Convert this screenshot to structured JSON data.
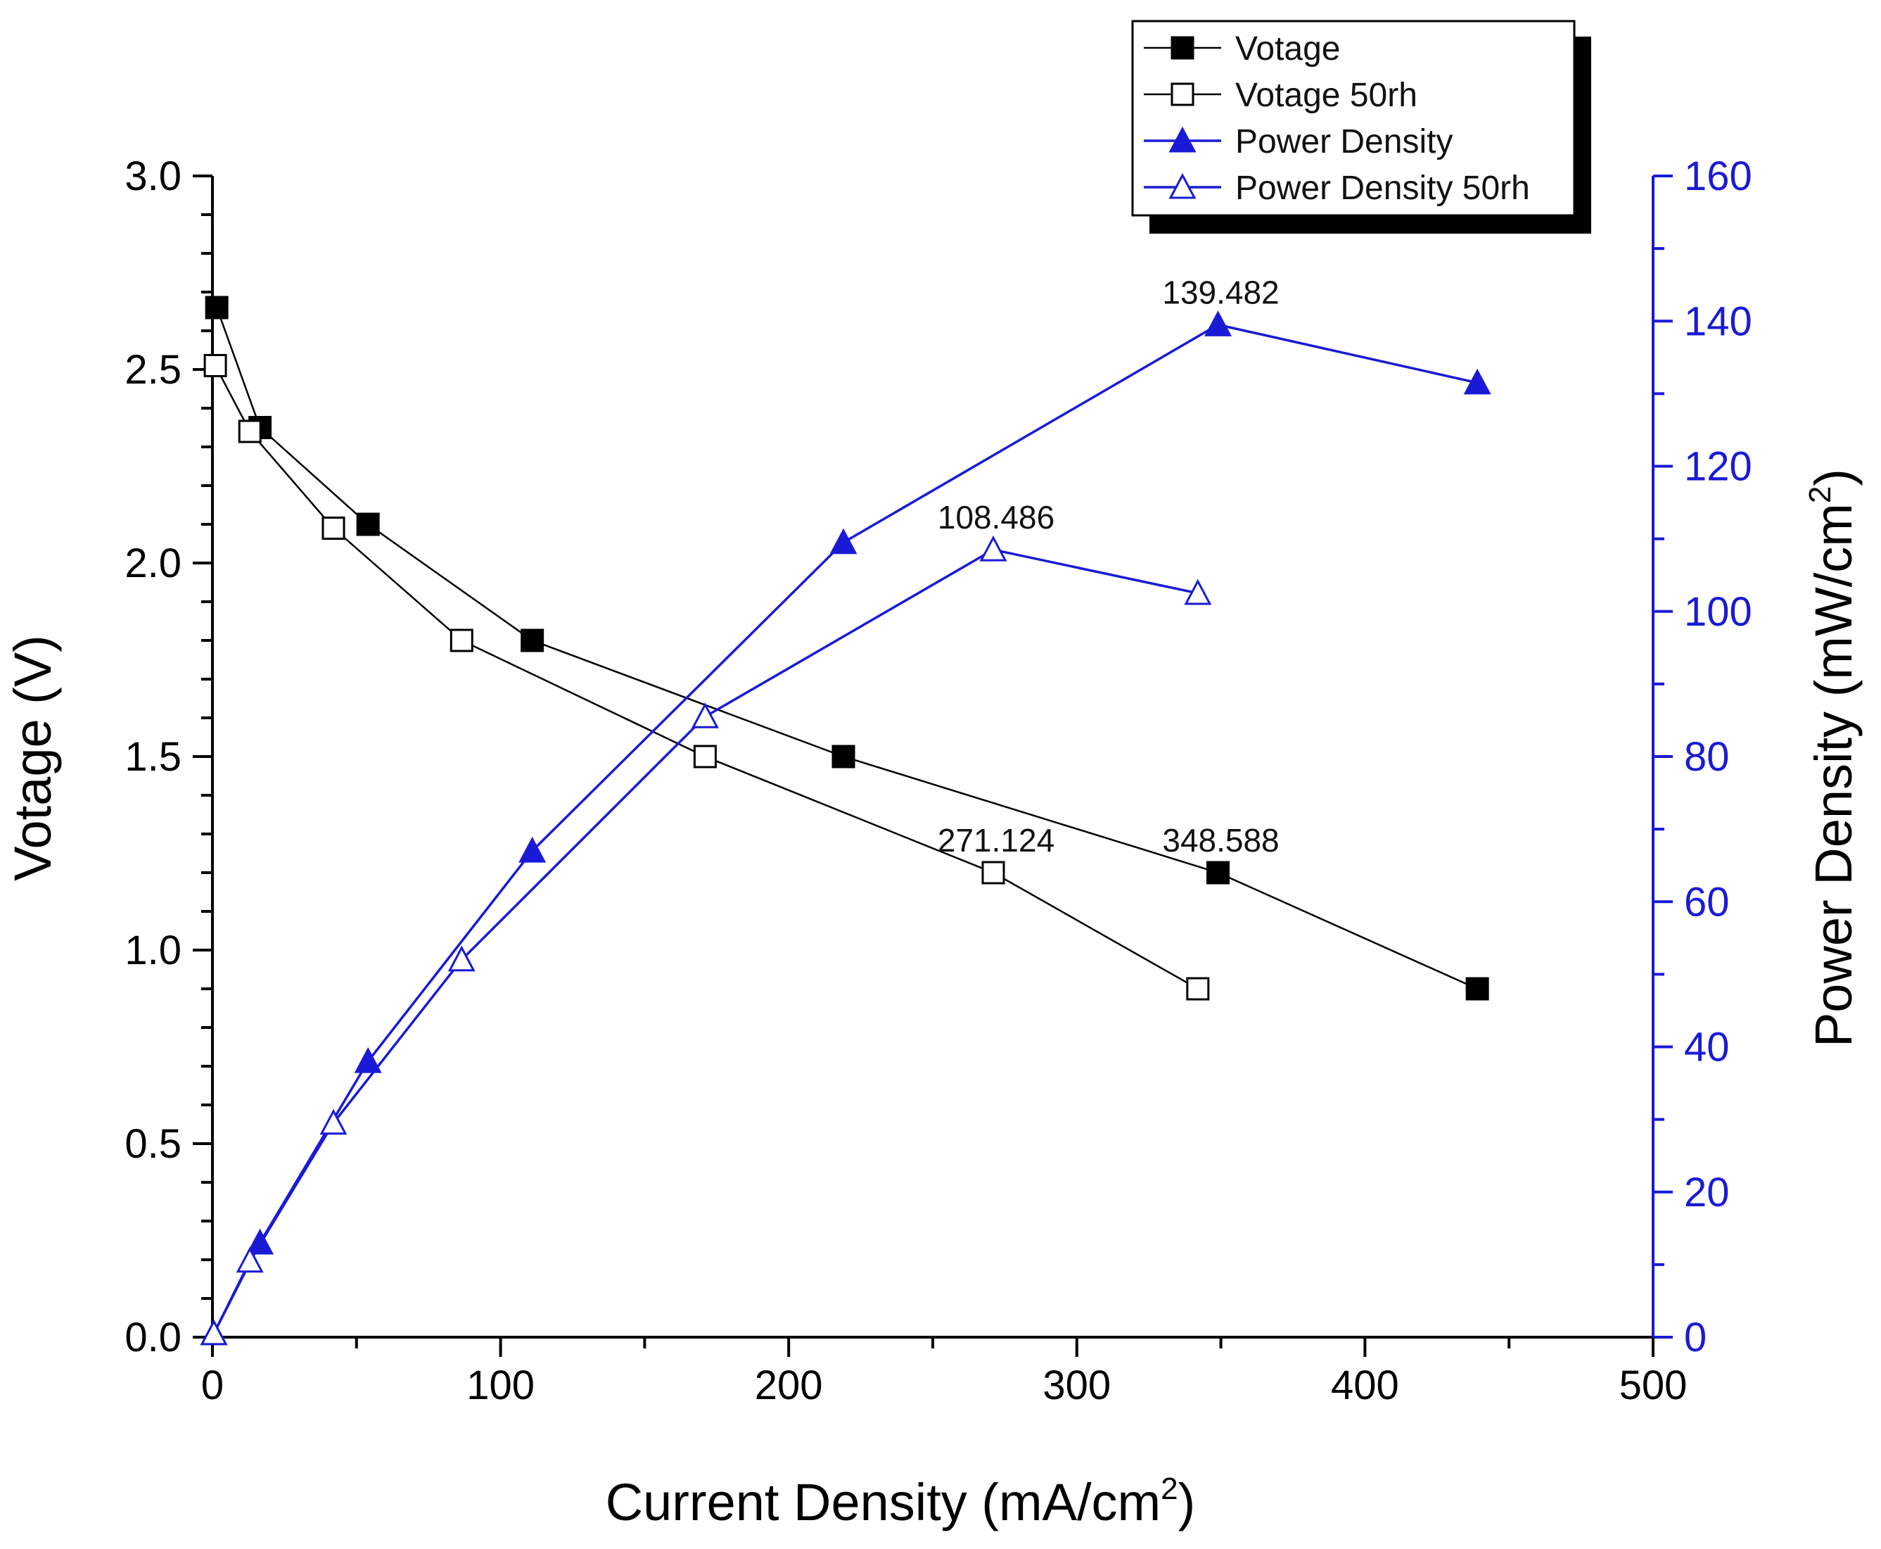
{
  "chart_data": {
    "type": "line",
    "title": "",
    "xlabel": "Current Density (mA/cm",
    "xlabel_sup": "2",
    "xlabel_end": ")",
    "ylabel": "Votage (V)",
    "y2label": "Power Density (mW/cm",
    "y2label_sup": "2",
    "y2label_end": ")",
    "xlim": [
      0,
      500
    ],
    "ylim": [
      0,
      3.0
    ],
    "y2lim": [
      0,
      160
    ],
    "x_ticks": [
      "0",
      "100",
      "200",
      "300",
      "400",
      "500"
    ],
    "y_ticks": [
      "0.0",
      "0.5",
      "1.0",
      "1.5",
      "2.0",
      "2.5",
      "3.0"
    ],
    "y2_ticks": [
      "0",
      "20",
      "40",
      "60",
      "80",
      "100",
      "120",
      "140",
      "160"
    ],
    "colors": {
      "voltage": "#000000",
      "power": "#1a1ad6"
    },
    "series": [
      {
        "name": "Votage",
        "axis": "left",
        "marker": "square-filled",
        "color": "#000000",
        "x": [
          1.5,
          16.5,
          54,
          111,
          219,
          349,
          439
        ],
        "y": [
          2.66,
          2.35,
          2.1,
          1.8,
          1.5,
          1.2,
          0.9
        ]
      },
      {
        "name": "Votage 50rh",
        "axis": "left",
        "marker": "square-open",
        "color": "#000000",
        "x": [
          1,
          13,
          42,
          86.5,
          171,
          271,
          342
        ],
        "y": [
          2.51,
          2.34,
          2.09,
          1.8,
          1.5,
          1.2,
          0.9
        ]
      },
      {
        "name": "Power Density",
        "axis": "right",
        "marker": "triangle-filled",
        "color": "#1a1ad6",
        "x": [
          0.5,
          16.5,
          54,
          111,
          219,
          349,
          439
        ],
        "y": [
          0.5,
          13,
          38,
          67,
          109.5,
          139.5,
          131.5
        ]
      },
      {
        "name": "Power Density 50rh",
        "axis": "right",
        "marker": "triangle-open",
        "color": "#1a1ad6",
        "x": [
          0.5,
          13,
          42,
          86.5,
          171,
          271,
          342
        ],
        "y": [
          0.5,
          10.5,
          29.5,
          52,
          85.5,
          108.5,
          102.5
        ]
      }
    ],
    "annotations": [
      {
        "text": "139.482",
        "x": 349,
        "y": 139.5,
        "axis": "right"
      },
      {
        "text": "108.486",
        "x": 271,
        "y": 108.5,
        "axis": "right"
      },
      {
        "text": "348.588",
        "x": 349,
        "y": 1.2,
        "axis": "left"
      },
      {
        "text": "271.124",
        "x": 271,
        "y": 1.2,
        "axis": "left"
      }
    ],
    "legend": {
      "position": "top-right",
      "entries": [
        "Votage",
        "Votage 50rh",
        "Power Density",
        "Power Density 50rh"
      ]
    }
  }
}
